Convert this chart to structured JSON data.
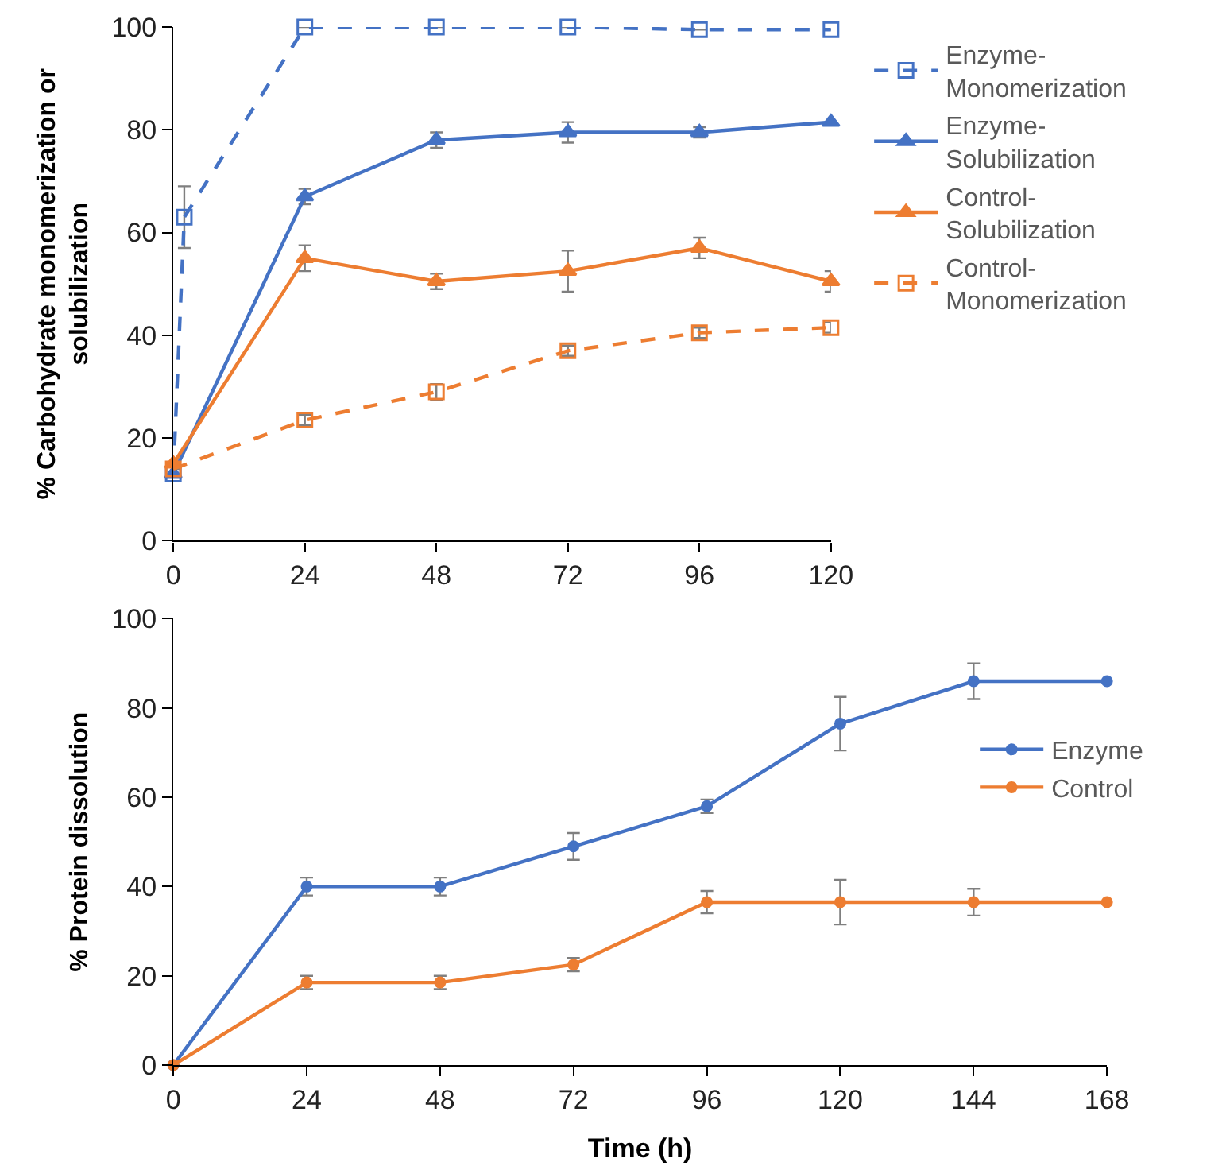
{
  "chart_data": [
    {
      "type": "line",
      "ylabel": "% Carbohydrate monomerization or solubilization",
      "xlim": [
        0,
        120
      ],
      "xticks": [
        0,
        24,
        48,
        72,
        96,
        120
      ],
      "ylim": [
        0,
        100
      ],
      "yticks": [
        0,
        20,
        40,
        60,
        80,
        100
      ],
      "grid": false,
      "legend": "right",
      "series": [
        {
          "name": "Enzyme-Monomerization",
          "color": "#4472c4",
          "marker": "square",
          "line_style": "dashed",
          "x": [
            0,
            2,
            24,
            48,
            72,
            96,
            120
          ],
          "values": [
            13,
            63,
            100,
            100,
            100,
            99.5,
            99.5
          ],
          "errors": [
            null,
            6,
            null,
            null,
            null,
            null,
            null
          ]
        },
        {
          "name": "Enzyme-Solubilization",
          "color": "#4472c4",
          "marker": "triangle",
          "line_style": "solid",
          "x": [
            0,
            24,
            48,
            72,
            96,
            120
          ],
          "values": [
            13,
            67,
            78,
            79.5,
            79.5,
            81.5
          ],
          "errors": [
            null,
            1.5,
            1.5,
            2,
            1,
            null
          ]
        },
        {
          "name": "Control-Solubilization",
          "color": "#ed7d31",
          "marker": "triangle",
          "line_style": "solid",
          "x": [
            0,
            24,
            48,
            72,
            96,
            120
          ],
          "values": [
            15,
            55,
            50.5,
            52.5,
            57,
            50.5
          ],
          "errors": [
            null,
            2.5,
            1.5,
            4,
            2,
            2
          ]
        },
        {
          "name": "Control-Monomerization",
          "color": "#ed7d31",
          "marker": "square",
          "line_style": "dashed",
          "x": [
            0,
            24,
            48,
            72,
            96,
            120
          ],
          "values": [
            14,
            23.5,
            29,
            37,
            40.5,
            41.5
          ],
          "errors": [
            null,
            1,
            1.5,
            1,
            1,
            1
          ]
        }
      ]
    },
    {
      "type": "line",
      "xlabel": "Time (h)",
      "ylabel": "% Protein dissolution",
      "xlim": [
        0,
        168
      ],
      "xticks": [
        0,
        24,
        48,
        72,
        96,
        120,
        144,
        168
      ],
      "ylim": [
        0,
        100
      ],
      "yticks": [
        0,
        20,
        40,
        60,
        80,
        100
      ],
      "grid": false,
      "legend": "right",
      "marker": "circle",
      "line_style": "solid",
      "x": [
        0,
        24,
        48,
        72,
        96,
        120,
        144,
        168
      ],
      "series": [
        {
          "name": "Enzyme",
          "color": "#4472c4",
          "values": [
            0,
            40,
            40,
            49,
            58,
            76.5,
            86,
            86
          ],
          "errors": [
            null,
            2,
            2,
            3,
            1.5,
            6,
            4,
            null
          ]
        },
        {
          "name": "Control",
          "color": "#ed7d31",
          "values": [
            0,
            18.5,
            18.5,
            22.5,
            36.5,
            36.5,
            36.5,
            36.5
          ],
          "errors": [
            null,
            1.5,
            1.5,
            1.5,
            2.5,
            5,
            3,
            null
          ]
        }
      ]
    }
  ]
}
